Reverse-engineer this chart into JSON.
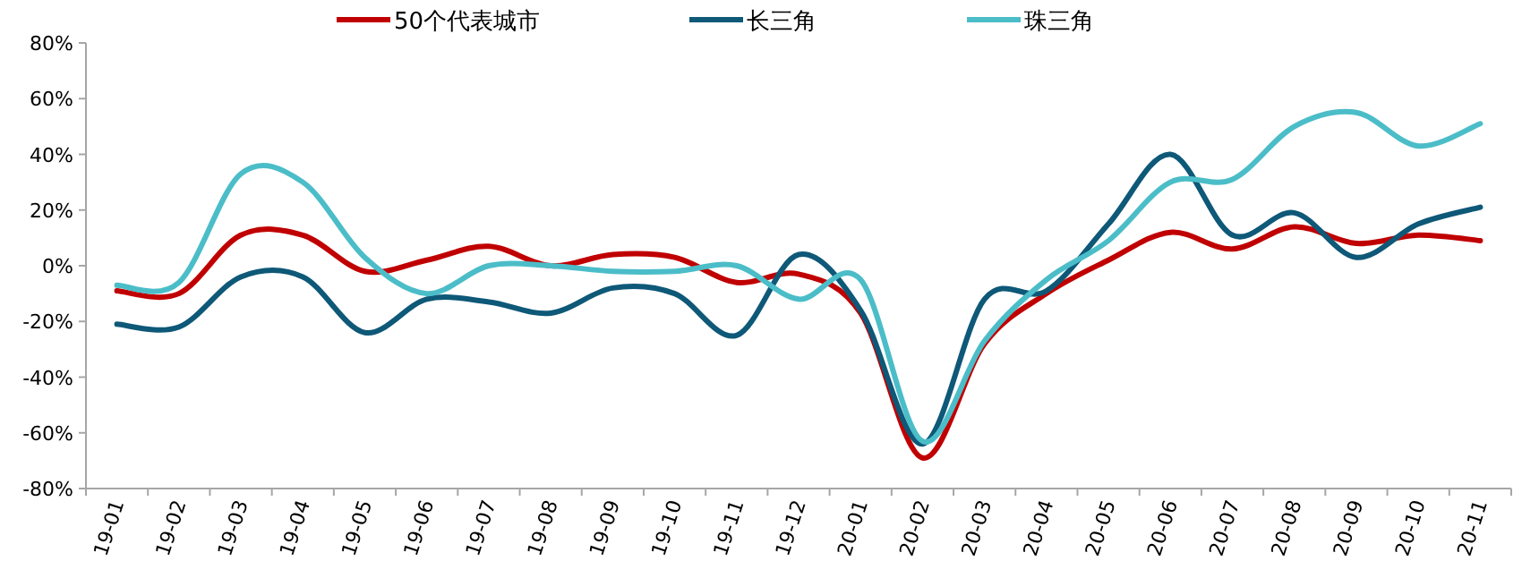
{
  "chart_data": {
    "type": "line",
    "categories": [
      "19-01",
      "19-02",
      "19-03",
      "19-04",
      "19-05",
      "19-06",
      "19-07",
      "19-08",
      "19-09",
      "19-10",
      "19-11",
      "19-12",
      "20-01",
      "20-02",
      "20-03",
      "20-04",
      "20-05",
      "20-06",
      "20-07",
      "20-08",
      "20-09",
      "20-10",
      "20-11"
    ],
    "series": [
      {
        "name": "50个代表城市",
        "color": "#c00000",
        "values": [
          -9,
          -10,
          11,
          11,
          -2,
          2,
          7,
          0,
          4,
          3,
          -6,
          -3,
          -17,
          -69,
          -28,
          -10,
          2,
          12,
          6,
          14,
          8,
          11,
          9
        ]
      },
      {
        "name": "长三角",
        "color": "#0e5878",
        "values": [
          -21,
          -22,
          -4,
          -4,
          -24,
          -12,
          -13,
          -17,
          -8,
          -10,
          -25,
          4,
          -16,
          -64,
          -12,
          -9,
          15,
          40,
          11,
          19,
          3,
          15,
          21
        ]
      },
      {
        "name": "珠三角",
        "color": "#4bbdc8",
        "values": [
          -7,
          -6,
          33,
          30,
          3,
          -10,
          0,
          0,
          -2,
          -2,
          0,
          -12,
          -5,
          -63,
          -27,
          -5,
          9,
          30,
          31,
          50,
          55,
          43,
          51
        ]
      }
    ],
    "ylim": [
      -80,
      80
    ],
    "yticks": [
      {
        "value": -80,
        "label": "-80%"
      },
      {
        "value": -60,
        "label": "-60%"
      },
      {
        "value": -40,
        "label": "-40%"
      },
      {
        "value": -20,
        "label": "-20%"
      },
      {
        "value": 0,
        "label": "0%"
      },
      {
        "value": 20,
        "label": "20%"
      },
      {
        "value": 40,
        "label": "40%"
      },
      {
        "value": 60,
        "label": "60%"
      },
      {
        "value": 80,
        "label": "80%"
      }
    ],
    "legend": "top",
    "grid": false,
    "line_style": "solid"
  }
}
